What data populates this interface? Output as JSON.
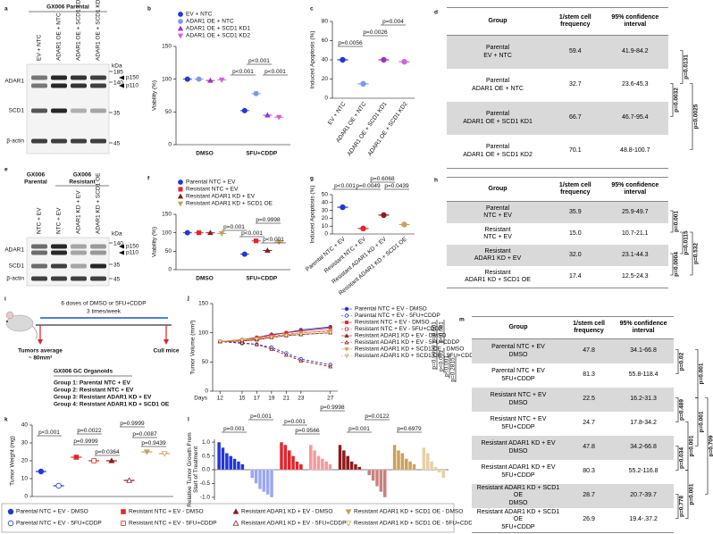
{
  "blots": {
    "a": {
      "label": "a",
      "title": "GX006 Parental",
      "lanes": [
        "EV + NTC",
        "ADAR1 OE + NTC",
        "ADAR1 OE + SCD1 KD1",
        "ADAR1 OE + SCD1 KD2"
      ],
      "kda_label": "kDa",
      "markers": [
        185,
        140,
        35,
        45
      ],
      "bands": [
        "ADAR1",
        "SCD1",
        "β-actin"
      ],
      "isoforms": [
        "p150",
        "p110"
      ]
    },
    "e": {
      "label": "e",
      "titles": [
        [
          "GX006",
          "Parental"
        ],
        [
          "GX006",
          "Resistant"
        ]
      ],
      "lanes": [
        "NTC + EV",
        "NTC + EV",
        "ADAR1 KD + EV",
        "ADAR1 KD + SCD1 OE"
      ],
      "kda_label": "kDa",
      "markers": [
        140,
        35,
        45
      ],
      "bands": [
        "ADAR1",
        "SCD1",
        "β-actin"
      ],
      "isoforms": [
        "p150",
        "p110"
      ]
    }
  },
  "chart_data": [
    {
      "label": "b",
      "type": "dot",
      "ylabel": "Viability (%)",
      "ylim": [
        0,
        150
      ],
      "yticks": [
        0,
        50,
        100,
        150
      ],
      "categories": [
        "DMSO",
        "5FU+CDDP"
      ],
      "series": [
        {
          "name": "EV + NTC",
          "color": "#2336d9",
          "marker": "circle",
          "values": [
            100,
            52
          ]
        },
        {
          "name": "ADAR1 OE + NTC",
          "color": "#7f9be6",
          "marker": "circle",
          "values": [
            100,
            78
          ]
        },
        {
          "name": "ADAR1 OE + SCD1 KD1",
          "color": "#9b35c4",
          "marker": "triangle",
          "values": [
            98,
            45
          ]
        },
        {
          "name": "ADAR1 OE + SCD1 KD2",
          "color": "#d063d8",
          "marker": "triangle-down",
          "values": [
            99,
            42
          ]
        }
      ],
      "annotations": [
        "p<0.001",
        "p<0.001",
        "p<0.001"
      ]
    },
    {
      "label": "c",
      "type": "dot",
      "ylabel": "Induced Apoptosis (%)",
      "ylim": [
        0,
        80
      ],
      "yticks": [
        0,
        20,
        40,
        60,
        80
      ],
      "categories": [
        "EV + NTC",
        "ADAR1 OE + NTC",
        "ADAR1 OE + SCD1 KD1",
        "ADAR1 OE + SCD1 KD2"
      ],
      "values": [
        40,
        15,
        40,
        38
      ],
      "colors": [
        "#2336d9",
        "#7f9be6",
        "#9b35c4",
        "#d063d8"
      ],
      "annotations": [
        "p=0.0056",
        "p=0.0026",
        "p=0.004"
      ]
    },
    {
      "label": "f",
      "type": "dot",
      "ylabel": "Viability (%)",
      "ylim": [
        0,
        150
      ],
      "yticks": [
        0,
        50,
        100,
        150
      ],
      "categories": [
        "DMSO",
        "5FU+CDDP"
      ],
      "series": [
        {
          "name": "Parental NTC + EV",
          "color": "#2336d9",
          "marker": "circle",
          "values": [
            100,
            42
          ]
        },
        {
          "name": "Resistant NTC + EV",
          "color": "#e3242b",
          "marker": "square",
          "values": [
            100,
            78
          ]
        },
        {
          "name": "Resistant ADAR1 KD + EV",
          "color": "#8e1b1b",
          "marker": "triangle",
          "values": [
            100,
            52
          ]
        },
        {
          "name": "Resistant ADAR1 KD + SCD1 OE",
          "color": "#c8a15c",
          "marker": "triangle-down",
          "values": [
            98,
            75
          ]
        }
      ],
      "annotations": [
        "p=0.001",
        "p=0.9998",
        "p<0.001",
        "p<0.001"
      ]
    },
    {
      "label": "g",
      "type": "dot",
      "ylabel": "Induced Apoptosis (%)",
      "ylim": [
        0,
        50
      ],
      "yticks": [
        0,
        10,
        20,
        30,
        40,
        50
      ],
      "categories": [
        "Parental NTC + EV",
        "Resistant NTC + EV",
        "Resistant ADAR1 KD + EV",
        "Resistant ADAR1 KD + SCD1 OE"
      ],
      "values": [
        34,
        7,
        24,
        12
      ],
      "colors": [
        "#2336d9",
        "#e3242b",
        "#8e1b1b",
        "#c8a15c"
      ],
      "annotations": [
        "p<0.001",
        "p=0.0049",
        "p=0.0439",
        "p=0.6068"
      ]
    },
    {
      "label": "j",
      "type": "line",
      "ylabel": "Tumor Volume (mm³)",
      "xlabel": "Days",
      "ylim": [
        0,
        150
      ],
      "yticks": [
        0,
        50,
        100,
        150
      ],
      "xlim": [
        11,
        28
      ],
      "xticks": [
        12,
        15,
        17,
        19,
        21,
        23,
        27
      ],
      "x": [
        12,
        15,
        17,
        19,
        21,
        23,
        27
      ],
      "series": [
        {
          "name": "Parental NTC + EV - DMSO",
          "color": "#2336d9",
          "marker": "circle",
          "filled": true,
          "dashed": false,
          "values": [
            85,
            88,
            92,
            97,
            100,
            105,
            110
          ]
        },
        {
          "name": "Parental NTC + EV - 5FU+CDDP",
          "color": "#2336d9",
          "marker": "circle",
          "filled": false,
          "dashed": true,
          "values": [
            85,
            82,
            80,
            75,
            65,
            55,
            45
          ]
        },
        {
          "name": "Resistant NTC + EV - DMSO",
          "color": "#e3242b",
          "marker": "square",
          "filled": true,
          "dashed": false,
          "values": [
            85,
            88,
            92,
            96,
            100,
            103,
            108
          ]
        },
        {
          "name": "Resistant NTC + EV - 5FU+CDDP",
          "color": "#e3242b",
          "marker": "square",
          "filled": false,
          "dashed": true,
          "values": [
            85,
            87,
            90,
            94,
            97,
            100,
            103
          ]
        },
        {
          "name": "Resistant ADAR1 KD + EV - DMSO",
          "color": "#8e1b1b",
          "marker": "triangle",
          "filled": true,
          "dashed": false,
          "values": [
            85,
            86,
            88,
            92,
            95,
            97,
            100
          ]
        },
        {
          "name": "Resistant ADAR1 KD + EV - 5FU+CDDP",
          "color": "#8e1b1b",
          "marker": "triangle",
          "filled": false,
          "dashed": true,
          "values": [
            85,
            83,
            80,
            72,
            62,
            52,
            42
          ]
        },
        {
          "name": "Resistant ADAR1 KD + SCD1 OE - DMSO",
          "color": "#c8a15c",
          "marker": "triangle-down",
          "filled": true,
          "dashed": false,
          "values": [
            85,
            88,
            90,
            93,
            96,
            100,
            104
          ]
        },
        {
          "name": "Resistant ADAR1 KD + SCD1 OE - 5FU+CDDP",
          "color": "#c8a15c",
          "marker": "triangle-down",
          "filled": false,
          "dashed": true,
          "values": [
            85,
            87,
            89,
            92,
            95,
            97,
            100
          ]
        }
      ],
      "annotations": [
        "p=0.001",
        "p<0.001",
        "p=0.9999",
        "p<0.001",
        "p<0.001",
        "p=0.2815"
      ]
    },
    {
      "label": "k",
      "type": "dot",
      "ylabel": "Tumor Weight (mg)",
      "ylim": [
        0,
        40
      ],
      "yticks": [
        0,
        10,
        20,
        30,
        40
      ],
      "categories": [
        null,
        null,
        null,
        null,
        null,
        null,
        null,
        null
      ],
      "values": [
        14,
        6,
        22,
        20,
        20,
        9,
        25,
        24
      ],
      "colors": [
        "#2336d9",
        "#2336d9",
        "#e3242b",
        "#e3242b",
        "#8e1b1b",
        "#8e1b1b",
        "#c8a15c",
        "#c8a15c"
      ],
      "markers": [
        "circle",
        "circle",
        "square",
        "square",
        "triangle",
        "triangle",
        "triangle-down",
        "triangle-down"
      ],
      "filled": [
        true,
        false,
        true,
        false,
        true,
        false,
        true,
        false
      ],
      "annotations": [
        "p<0.001",
        "p=0.0022",
        "p=0.9999",
        "p=0.9999",
        "p=0.0364",
        "p=0.0087",
        "p=0.9439"
      ]
    },
    {
      "label": "l",
      "type": "waterfall",
      "ylabel": [
        "Relative Tumor Growth From",
        "Start of Treatment"
      ],
      "ylim": [
        -1.1,
        1.1
      ],
      "yticks": [
        {
          "value": -1,
          "label": "-1.0"
        },
        {
          "value": -0.5,
          "label": "-0.5"
        },
        {
          "value": 0,
          "label": "0.0"
        },
        {
          "value": 0.5,
          "label": "0.5"
        },
        {
          "value": 1,
          "label": "1.0"
        }
      ],
      "series": [
        {
          "color": "#2336d9",
          "values": [
            1.0,
            0.8,
            0.6,
            0.5,
            0.4,
            0.3,
            0.2
          ]
        },
        {
          "color": "#9aa8f0",
          "values": [
            -0.3,
            -0.5,
            -0.7,
            -0.8,
            -0.9,
            -1.0
          ]
        },
        {
          "color": "#e3242b",
          "values": [
            1.0,
            0.9,
            0.7,
            0.5,
            0.3,
            0.2
          ]
        },
        {
          "color": "#f29a9e",
          "values": [
            0.9,
            0.7,
            0.5,
            0.4,
            0.3,
            0.2
          ]
        },
        {
          "color": "#8e1b1b",
          "values": [
            0.9,
            0.7,
            0.5,
            0.3,
            0.2,
            0.1
          ]
        },
        {
          "color": "#c98080",
          "values": [
            -0.2,
            -0.4,
            -0.6,
            -0.8,
            -1.0
          ]
        },
        {
          "color": "#c8a15c",
          "values": [
            0.9,
            0.7,
            0.6,
            0.4,
            0.3,
            0.2
          ]
        },
        {
          "color": "#e6d0a6",
          "values": [
            0.8,
            0.6,
            0.3,
            0.1,
            -0.1,
            -0.3
          ]
        }
      ],
      "annotations": [
        "p=0.001",
        "p=0.001",
        "p=0.9998",
        "p=0.001",
        "p=0.9566",
        "p=0.0122",
        "p=0.001",
        "p=0.6979"
      ]
    }
  ],
  "tables": {
    "d": {
      "label": "d",
      "columns": [
        "Group",
        "1/stem cell\nfrequency",
        "95% confidence\ninterval"
      ],
      "rows": [
        [
          "Parental\nEV + NTC",
          "59.4",
          "41.9-84.2"
        ],
        [
          "Parental\nADAR1 OE + NTC",
          "32.7",
          "23.6-45.3"
        ],
        [
          "Parental\nADAR1 OE + SCD1 KD1",
          "66.7",
          "46.7-95.4"
        ],
        [
          "Parental\nADAR1 OE + SCD1 KD2",
          "70.1",
          "48.8-100.7"
        ]
      ],
      "pvalues": [
        "p=0.0131",
        "p=0.0032",
        "p=0.0025"
      ]
    },
    "h": {
      "label": "h",
      "columns": [
        "Group",
        "1/stem cell\nfrequency",
        "95% confidence\ninterval"
      ],
      "rows": [
        [
          "Parental\nNTC + EV",
          "35.9",
          "25.9-49.7"
        ],
        [
          "Resistant\nNTC + EV",
          "15.0",
          "10.7-21.1"
        ],
        [
          "Resistant\nADAR1 KD + EV",
          "32.0",
          "23.1-44.3"
        ],
        [
          "Resistant\nADAR1 KD + SCD1 OE",
          "17.4",
          "12.5-24.3"
        ]
      ],
      "pvalues": [
        "p=0.001",
        "p=0.0115",
        "p=0.0004",
        "p=0.532"
      ]
    },
    "m": {
      "label": "m",
      "columns": [
        "Group",
        "1/stem cell\nfrequency",
        "95% confidence\ninterval"
      ],
      "rows": [
        [
          "Parental NTC + EV\nDMSO",
          "47.8",
          "34.1-66.8"
        ],
        [
          "Parental NTC + EV\n5FU+CDDP",
          "81.3",
          "55.8-118.4"
        ],
        [
          "Resistant NTC + EV\nDMSO",
          "22.5",
          "16.2-31.3"
        ],
        [
          "Resistant NTC + EV\n5FU+CDDP",
          "24.7",
          "17.8-34.2"
        ],
        [
          "Resistant ADAR1 KD + EV\nDMSO",
          "47.8",
          "34.2-66.8"
        ],
        [
          "Resistant ADAR1 KD + EV\n5FU+CDDP",
          "80.3",
          "55.2-116.8"
        ],
        [
          "Resistant ADAR1 KD + SCD1 OE\nDMSO",
          "28.7",
          "20.7-39.7"
        ],
        [
          "Resistant ADAR1 KD + SCD1 OE\n5FU+CDDP",
          "26.9",
          "19.4-.37.2"
        ]
      ],
      "pvalues": [
        "p=0.02",
        "p=0.001",
        "p=0.489",
        "p=0.001",
        "p=0.034",
        "p=0.001",
        "p=0.709",
        "p=0.778",
        "p=0.001"
      ]
    }
  },
  "schematic": {
    "label": "i",
    "doses": "6 doses of DMSO or 5FU+CDDP",
    "frequency": "3 times/week",
    "start": [
      "Tumors average",
      "~ 80mm³"
    ],
    "end": "Cull mice",
    "model": "GX006 GC Organoids",
    "groups": [
      "Group 1: Parental NTC + EV",
      "Group 2: Resistant NTC + EV",
      "Group 3: Resistant ADAR1 KD + EV",
      "Group 4: Resistant ADAR1 KD + SCD1 OE"
    ]
  }
}
